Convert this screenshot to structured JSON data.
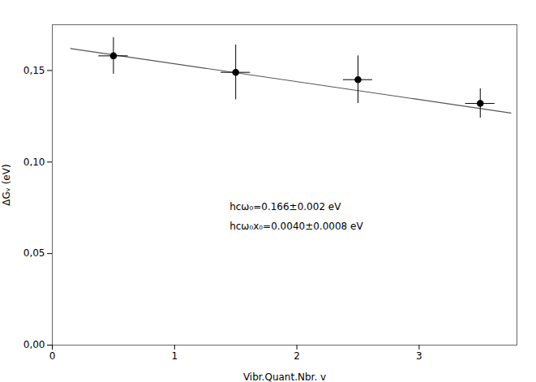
{
  "chart_data": {
    "type": "scatter",
    "xlabel": "Vibr.Quant.Nbr. v",
    "ylabel": "ΔGᵥ (eV)",
    "x": [
      0.5,
      1.5,
      2.5,
      3.5
    ],
    "values": [
      0.158,
      0.149,
      0.145,
      0.132
    ],
    "y_err": [
      0.01,
      0.015,
      0.013,
      0.008
    ],
    "x_err": [
      0.12,
      0.12,
      0.12,
      0.12
    ],
    "color": "black",
    "fit": {
      "x": [
        0.15,
        3.75
      ],
      "values": [
        0.162,
        0.1268
      ],
      "color": "#555555",
      "line_style": "solid"
    },
    "annotation": {
      "lines": [
        "hcω₀=0.166±0.002 eV",
        "hcω₀x₀=0.0040±0.0008 eV"
      ],
      "x": 1.45,
      "y": 0.072
    },
    "xlim": [
      0,
      3.8
    ],
    "ylim": [
      0.0,
      0.175
    ],
    "xticks": [
      0,
      1,
      2,
      3
    ],
    "yticks": [
      {
        "value": 0.0,
        "label": "0,00"
      },
      {
        "value": 0.05,
        "label": "0,05"
      },
      {
        "value": 0.1,
        "label": "0,10"
      },
      {
        "value": 0.15,
        "label": "0,15"
      }
    ],
    "grid": false
  }
}
